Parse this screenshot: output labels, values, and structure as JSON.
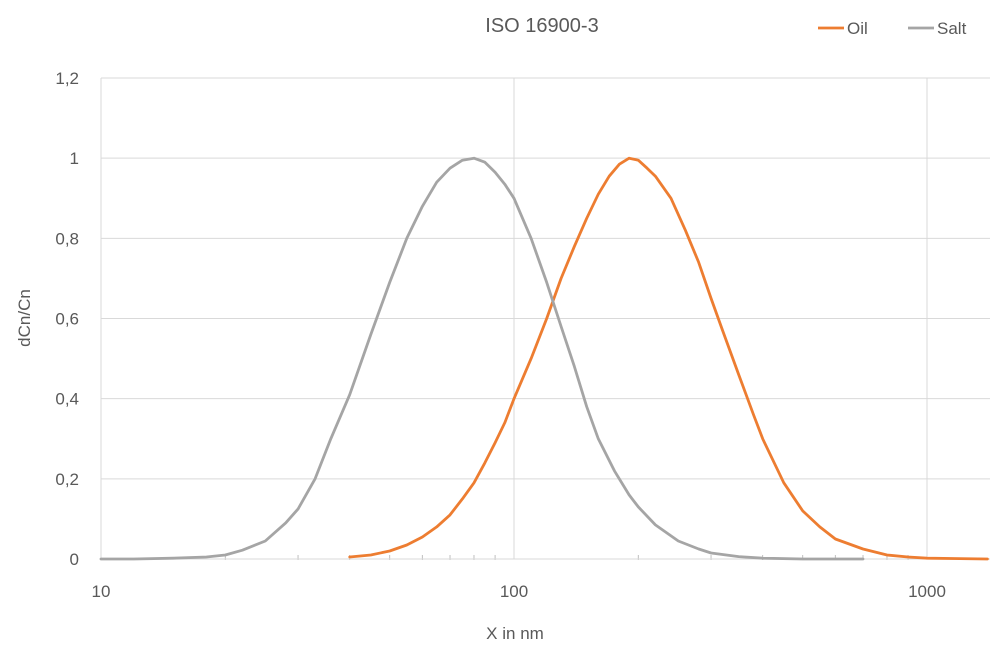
{
  "chart_data": {
    "type": "line",
    "title": "ISO 16900-3",
    "xlabel": "X in nm",
    "ylabel": "dCn/Cn",
    "xscale": "log",
    "xlim": [
      10,
      1400
    ],
    "ylim": [
      0,
      1.2
    ],
    "x_ticks": [
      {
        "value": 10,
        "label": "10"
      },
      {
        "value": 100,
        "label": "100"
      },
      {
        "value": 1000,
        "label": "1000"
      }
    ],
    "y_ticks": [
      {
        "value": 0,
        "label": "0"
      },
      {
        "value": 0.2,
        "label": "0,2"
      },
      {
        "value": 0.4,
        "label": "0,4"
      },
      {
        "value": 0.6,
        "label": "0,6"
      },
      {
        "value": 0.8,
        "label": "0,8"
      },
      {
        "value": 1.0,
        "label": "1"
      },
      {
        "value": 1.2,
        "label": "1,2"
      }
    ],
    "grid": true,
    "legend_position": "top-right",
    "series": [
      {
        "name": "Oil",
        "color": "#ED7D31",
        "points": [
          [
            40,
            0.005
          ],
          [
            45,
            0.01
          ],
          [
            50,
            0.02
          ],
          [
            55,
            0.035
          ],
          [
            60,
            0.055
          ],
          [
            65,
            0.08
          ],
          [
            70,
            0.11
          ],
          [
            75,
            0.15
          ],
          [
            80,
            0.19
          ],
          [
            85,
            0.24
          ],
          [
            90,
            0.29
          ],
          [
            95,
            0.34
          ],
          [
            100,
            0.4
          ],
          [
            110,
            0.5
          ],
          [
            120,
            0.6
          ],
          [
            130,
            0.7
          ],
          [
            140,
            0.78
          ],
          [
            150,
            0.85
          ],
          [
            160,
            0.91
          ],
          [
            170,
            0.955
          ],
          [
            180,
            0.985
          ],
          [
            190,
            1.0
          ],
          [
            200,
            0.995
          ],
          [
            210,
            0.975
          ],
          [
            220,
            0.955
          ],
          [
            240,
            0.9
          ],
          [
            260,
            0.82
          ],
          [
            280,
            0.74
          ],
          [
            300,
            0.65
          ],
          [
            320,
            0.57
          ],
          [
            350,
            0.46
          ],
          [
            380,
            0.36
          ],
          [
            400,
            0.3
          ],
          [
            450,
            0.19
          ],
          [
            500,
            0.12
          ],
          [
            550,
            0.08
          ],
          [
            600,
            0.05
          ],
          [
            700,
            0.025
          ],
          [
            800,
            0.01
          ],
          [
            900,
            0.005
          ],
          [
            1000,
            0.002
          ],
          [
            1200,
            0.001
          ],
          [
            1400,
            0.0
          ]
        ]
      },
      {
        "name": "Salt",
        "color": "#A5A5A5",
        "points": [
          [
            10,
            0.0
          ],
          [
            12,
            0.0
          ],
          [
            15,
            0.002
          ],
          [
            18,
            0.005
          ],
          [
            20,
            0.01
          ],
          [
            22,
            0.022
          ],
          [
            25,
            0.045
          ],
          [
            28,
            0.09
          ],
          [
            30,
            0.125
          ],
          [
            33,
            0.2
          ],
          [
            36,
            0.3
          ],
          [
            40,
            0.41
          ],
          [
            45,
            0.56
          ],
          [
            50,
            0.69
          ],
          [
            55,
            0.8
          ],
          [
            60,
            0.88
          ],
          [
            65,
            0.94
          ],
          [
            70,
            0.975
          ],
          [
            75,
            0.995
          ],
          [
            80,
            1.0
          ],
          [
            85,
            0.99
          ],
          [
            90,
            0.965
          ],
          [
            95,
            0.935
          ],
          [
            100,
            0.9
          ],
          [
            110,
            0.8
          ],
          [
            120,
            0.69
          ],
          [
            130,
            0.58
          ],
          [
            140,
            0.48
          ],
          [
            150,
            0.38
          ],
          [
            160,
            0.3
          ],
          [
            175,
            0.22
          ],
          [
            190,
            0.16
          ],
          [
            200,
            0.13
          ],
          [
            220,
            0.085
          ],
          [
            250,
            0.045
          ],
          [
            280,
            0.025
          ],
          [
            300,
            0.015
          ],
          [
            350,
            0.006
          ],
          [
            400,
            0.002
          ],
          [
            500,
            0.0
          ],
          [
            700,
            0.0
          ]
        ]
      }
    ]
  }
}
